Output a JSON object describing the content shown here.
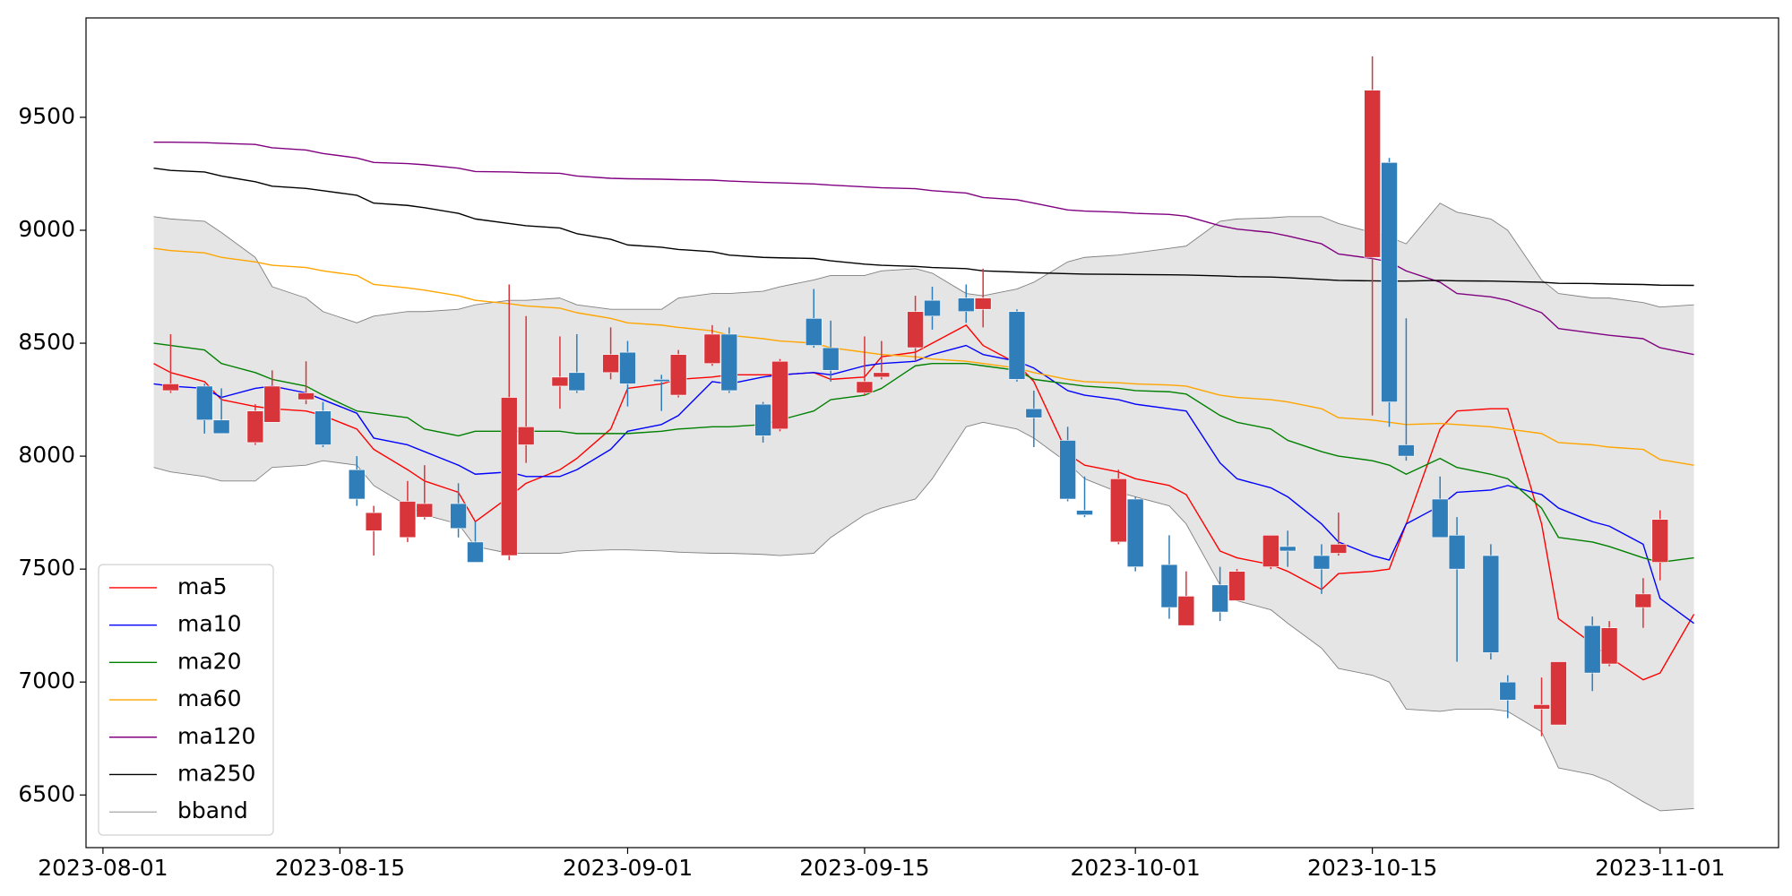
{
  "chart_data": {
    "type": "candlestick",
    "x": [
      "2023-08-04",
      "2023-08-05",
      "2023-08-07",
      "2023-08-08",
      "2023-08-10",
      "2023-08-11",
      "2023-08-13",
      "2023-08-14",
      "2023-08-16",
      "2023-08-17",
      "2023-08-19",
      "2023-08-20",
      "2023-08-22",
      "2023-08-23",
      "2023-08-25",
      "2023-08-26",
      "2023-08-28",
      "2023-08-29",
      "2023-08-31",
      "2023-09-01",
      "2023-09-03",
      "2023-09-04",
      "2023-09-06",
      "2023-09-07",
      "2023-09-09",
      "2023-09-10",
      "2023-09-12",
      "2023-09-13",
      "2023-09-15",
      "2023-09-16",
      "2023-09-18",
      "2023-09-19",
      "2023-09-21",
      "2023-09-22",
      "2023-09-24",
      "2023-09-25",
      "2023-09-27",
      "2023-09-28",
      "2023-09-30",
      "2023-10-01",
      "2023-10-03",
      "2023-10-04",
      "2023-10-06",
      "2023-10-07",
      "2023-10-09",
      "2023-10-10",
      "2023-10-12",
      "2023-10-13",
      "2023-10-15",
      "2023-10-16",
      "2023-10-17",
      "2023-10-19",
      "2023-10-20",
      "2023-10-22",
      "2023-10-23",
      "2023-10-25",
      "2023-10-26",
      "2023-10-28",
      "2023-10-29",
      "2023-10-31",
      "2023-11-01",
      "2023-11-03"
    ],
    "open": [
      null,
      8290,
      8310,
      8160,
      8060,
      8150,
      8250,
      8200,
      7940,
      7670,
      7640,
      7730,
      7790,
      7620,
      7560,
      8050,
      8310,
      8370,
      8370,
      8460,
      8340,
      8270,
      8410,
      8540,
      8230,
      8120,
      8610,
      8480,
      8280,
      8350,
      8480,
      8690,
      8700,
      8650,
      8640,
      8210,
      8070,
      7760,
      7620,
      7810,
      7520,
      7250,
      7430,
      7360,
      7510,
      7600,
      7560,
      7570,
      8880,
      9300,
      8050,
      7810,
      7650,
      7560,
      7000,
      6880,
      6810,
      7250,
      7080,
      7330,
      7530,
      null
    ],
    "high": [
      null,
      8540,
      8320,
      8300,
      8230,
      8380,
      8420,
      8240,
      8000,
      7780,
      7890,
      7960,
      7880,
      7710,
      8760,
      8620,
      8530,
      8540,
      8570,
      8510,
      8360,
      8470,
      8580,
      8570,
      8240,
      8430,
      8740,
      8600,
      8530,
      8510,
      8710,
      8750,
      8760,
      8830,
      8650,
      8290,
      8130,
      7910,
      7940,
      7820,
      7650,
      7490,
      7510,
      7500,
      7650,
      7670,
      7610,
      7750,
      9770,
      9320,
      8610,
      7910,
      7730,
      7610,
      7030,
      7020,
      7090,
      7290,
      7270,
      7460,
      7760,
      null
    ],
    "low": [
      null,
      8280,
      8100,
      8100,
      8050,
      8150,
      8230,
      8040,
      7780,
      7560,
      7620,
      7720,
      7640,
      7530,
      7540,
      7970,
      8210,
      8280,
      8340,
      8220,
      8200,
      8260,
      8400,
      8280,
      8060,
      8110,
      8480,
      8330,
      8270,
      8340,
      8420,
      8560,
      8590,
      8570,
      8330,
      8040,
      7800,
      7730,
      7610,
      7490,
      7280,
      7250,
      7270,
      7360,
      7500,
      7510,
      7390,
      7560,
      8180,
      8130,
      7980,
      7640,
      7090,
      7100,
      6840,
      6760,
      6810,
      6960,
      7070,
      7240,
      7450,
      null
    ],
    "close": [
      null,
      8320,
      8160,
      8100,
      8200,
      8310,
      8280,
      8050,
      7810,
      7750,
      7800,
      7790,
      7680,
      7530,
      8260,
      8130,
      8350,
      8290,
      8450,
      8320,
      8330,
      8450,
      8540,
      8290,
      8090,
      8420,
      8490,
      8380,
      8330,
      8370,
      8640,
      8620,
      8640,
      8700,
      8340,
      8170,
      7810,
      7740,
      7900,
      7510,
      7330,
      7380,
      7310,
      7490,
      7650,
      7580,
      7500,
      7610,
      9620,
      8240,
      8000,
      7640,
      7500,
      7130,
      6920,
      6900,
      7090,
      7040,
      7240,
      7390,
      7720,
      null
    ],
    "up_color": "#d8353b",
    "down_color": "#2f7db9",
    "series": [
      {
        "name": "ma5",
        "color": "#ff0000",
        "values": [
          8410,
          8370,
          8330,
          8250,
          8220,
          8210,
          8200,
          8180,
          8120,
          8030,
          7940,
          7890,
          7840,
          7710,
          7820,
          7880,
          7940,
          7990,
          8120,
          8300,
          8320,
          8340,
          8350,
          8360,
          8360,
          8360,
          8370,
          8340,
          8350,
          8440,
          8460,
          8500,
          8580,
          8490,
          8410,
          8330,
          8010,
          7960,
          7930,
          7900,
          7870,
          7830,
          7580,
          7550,
          7520,
          7490,
          7410,
          7480,
          7490,
          7500,
          7700,
          8120,
          8200,
          8210,
          8210,
          7700,
          7280,
          7170,
          7110,
          7010,
          7040,
          7300
        ]
      },
      {
        "name": "ma10",
        "color": "#0000ff",
        "values": [
          8320,
          8310,
          8300,
          8260,
          8300,
          8310,
          8280,
          8250,
          8190,
          8080,
          8050,
          8020,
          7960,
          7920,
          7930,
          7910,
          7910,
          7940,
          8030,
          8110,
          8140,
          8180,
          8330,
          8320,
          8350,
          8360,
          8370,
          8360,
          8400,
          8410,
          8420,
          8450,
          8490,
          8450,
          8420,
          8390,
          8290,
          8270,
          8250,
          8230,
          8210,
          8200,
          7970,
          7900,
          7860,
          7820,
          7700,
          7620,
          7560,
          7540,
          7700,
          7780,
          7840,
          7850,
          7870,
          7830,
          7770,
          7710,
          7690,
          7610,
          7370,
          7260
        ]
      },
      {
        "name": "ma20",
        "color": "#008000",
        "values": [
          8500,
          8490,
          8470,
          8410,
          8370,
          8340,
          8310,
          8270,
          8200,
          8190,
          8170,
          8120,
          8090,
          8110,
          8110,
          8110,
          8110,
          8100,
          8100,
          8100,
          8110,
          8120,
          8130,
          8130,
          8140,
          8160,
          8200,
          8250,
          8270,
          8300,
          8400,
          8410,
          8410,
          8400,
          8380,
          8340,
          8320,
          8310,
          8300,
          8290,
          8285,
          8275,
          8180,
          8150,
          8120,
          8070,
          8020,
          8000,
          7980,
          7960,
          7920,
          7990,
          7950,
          7920,
          7900,
          7770,
          7640,
          7620,
          7600,
          7550,
          7530,
          7550
        ]
      },
      {
        "name": "ma60",
        "color": "#ffa500",
        "values": [
          8920,
          8910,
          8900,
          8880,
          8860,
          8845,
          8835,
          8820,
          8800,
          8760,
          8745,
          8735,
          8710,
          8690,
          8675,
          8665,
          8655,
          8635,
          8610,
          8590,
          8580,
          8570,
          8555,
          8535,
          8520,
          8510,
          8500,
          8480,
          8460,
          8450,
          8440,
          8430,
          8420,
          8410,
          8390,
          8370,
          8340,
          8330,
          8325,
          8320,
          8315,
          8310,
          8270,
          8260,
          8250,
          8240,
          8210,
          8170,
          8160,
          8150,
          8140,
          8145,
          8140,
          8130,
          8120,
          8100,
          8060,
          8050,
          8040,
          8030,
          7985,
          7960
        ]
      },
      {
        "name": "ma120",
        "color": "#800080",
        "values": [
          9390,
          9390,
          9388,
          9385,
          9380,
          9365,
          9355,
          9340,
          9320,
          9300,
          9295,
          9290,
          9275,
          9260,
          9258,
          9255,
          9252,
          9240,
          9230,
          9228,
          9226,
          9224,
          9222,
          9218,
          9212,
          9210,
          9205,
          9200,
          9192,
          9188,
          9184,
          9175,
          9165,
          9145,
          9135,
          9120,
          9090,
          9085,
          9080,
          9075,
          9070,
          9062,
          9020,
          9005,
          8990,
          8975,
          8940,
          8895,
          8875,
          8860,
          8820,
          8770,
          8720,
          8705,
          8690,
          8635,
          8565,
          8545,
          8535,
          8520,
          8480,
          8450
        ]
      },
      {
        "name": "ma250",
        "color": "#000000",
        "values": [
          9275,
          9265,
          9258,
          9240,
          9215,
          9195,
          9185,
          9175,
          9155,
          9120,
          9110,
          9100,
          9075,
          9050,
          9030,
          9020,
          9010,
          8985,
          8960,
          8935,
          8925,
          8915,
          8905,
          8890,
          8880,
          8878,
          8875,
          8865,
          8850,
          8845,
          8840,
          8835,
          8830,
          8820,
          8815,
          8812,
          8808,
          8806,
          8805,
          8804,
          8803,
          8802,
          8798,
          8795,
          8793,
          8790,
          8782,
          8778,
          8776,
          8775,
          8775,
          8778,
          8776,
          8775,
          8773,
          8770,
          8765,
          8764,
          8762,
          8760,
          8757,
          8756
        ]
      },
      {
        "name": "bband",
        "color": "#808080",
        "fill": "#e5e5e5",
        "upper": [
          9060,
          9050,
          9040,
          8990,
          8880,
          8750,
          8700,
          8640,
          8590,
          8620,
          8640,
          8640,
          8650,
          8670,
          8690,
          8690,
          8700,
          8670,
          8650,
          8650,
          8650,
          8700,
          8720,
          8720,
          8730,
          8750,
          8780,
          8800,
          8800,
          8820,
          8830,
          8810,
          8720,
          8710,
          8740,
          8770,
          8860,
          8880,
          8890,
          8900,
          8920,
          8930,
          9040,
          9050,
          9055,
          9060,
          9060,
          9030,
          8990,
          8970,
          8940,
          9120,
          9080,
          9050,
          9000,
          8780,
          8720,
          8700,
          8700,
          8680,
          8660,
          8670
        ],
        "lower": [
          7950,
          7930,
          7910,
          7890,
          7890,
          7950,
          7960,
          7980,
          7960,
          7870,
          7780,
          7740,
          7700,
          7600,
          7570,
          7570,
          7570,
          7580,
          7585,
          7585,
          7580,
          7575,
          7570,
          7570,
          7565,
          7560,
          7570,
          7640,
          7740,
          7770,
          7810,
          7900,
          8130,
          8150,
          8120,
          8080,
          7970,
          7900,
          7840,
          7820,
          7780,
          7700,
          7430,
          7360,
          7320,
          7260,
          7150,
          7060,
          7030,
          7000,
          6880,
          6870,
          6880,
          6880,
          6870,
          6780,
          6620,
          6590,
          6560,
          6470,
          6430,
          6440
        ]
      }
    ],
    "xlim": [
      "2023-07-31",
      "2023-11-08"
    ],
    "xticks": [
      "2023-08-01",
      "2023-08-15",
      "2023-09-01",
      "2023-09-15",
      "2023-10-01",
      "2023-10-15",
      "2023-11-01"
    ],
    "ylim": [
      6267,
      9940
    ],
    "yticks": [
      6500,
      7000,
      7500,
      8000,
      8500,
      9000,
      9500
    ],
    "grid": false,
    "legend": "lower left"
  }
}
